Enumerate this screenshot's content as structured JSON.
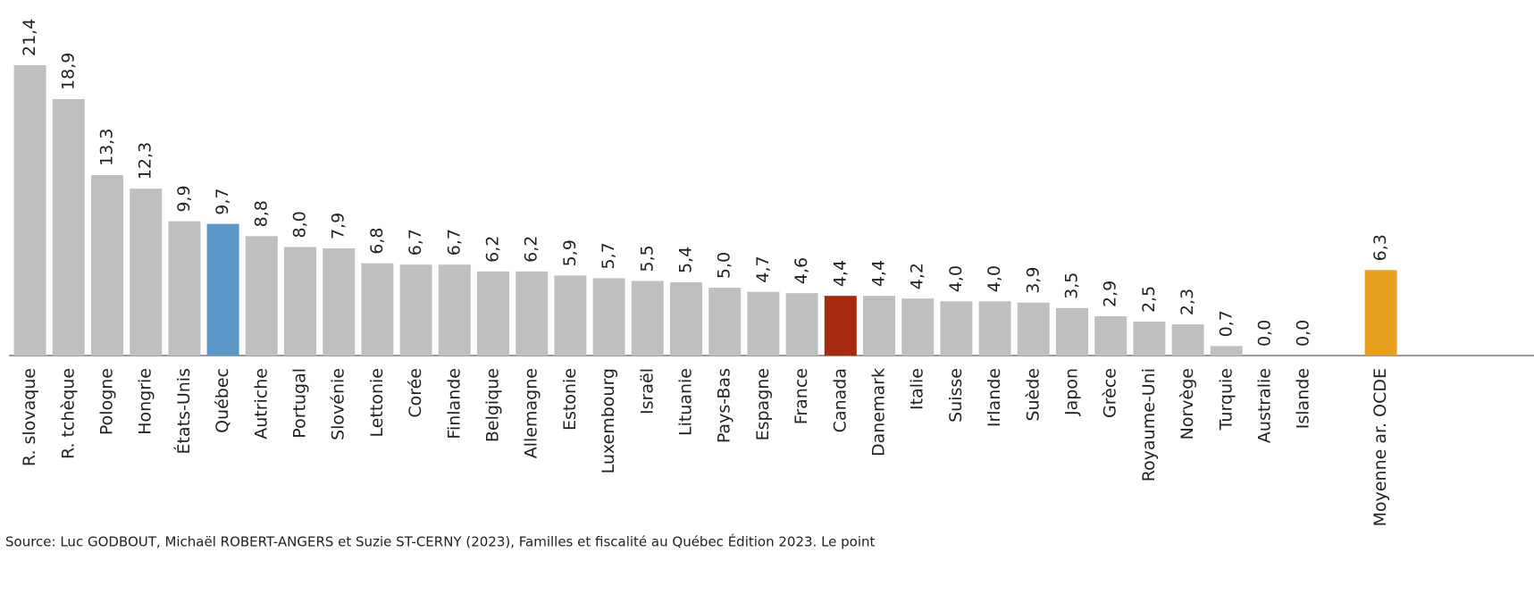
{
  "chart_data": {
    "type": "bar",
    "categories": [
      "R. slovaque",
      "R. tchèque",
      "Pologne",
      "Hongrie",
      "États-Unis",
      "Québec",
      "Autriche",
      "Portugal",
      "Slovénie",
      "Lettonie",
      "Corée",
      "Finlande",
      "Belgique",
      "Allemagne",
      "Estonie",
      "Luxembourg",
      "Israël",
      "Lituanie",
      "Pays-Bas",
      "Espagne",
      "France",
      "Canada",
      "Danemark",
      "Italie",
      "Suisse",
      "Irlande",
      "Suède",
      "Japon",
      "Grèce",
      "Royaume-Uni",
      "Norvège",
      "Turquie",
      "Australie",
      "Islande",
      null,
      "Moyenne ar. OCDE"
    ],
    "values": [
      21.4,
      18.9,
      13.3,
      12.3,
      9.9,
      9.7,
      8.8,
      8.0,
      7.9,
      6.8,
      6.7,
      6.7,
      6.2,
      6.2,
      5.9,
      5.7,
      5.5,
      5.4,
      5.0,
      4.7,
      4.6,
      4.4,
      4.4,
      4.2,
      4.0,
      4.0,
      3.9,
      3.5,
      2.9,
      2.5,
      2.3,
      0.7,
      0.0,
      0.0,
      null,
      6.3
    ],
    "value_labels": [
      "21,4",
      "18,9",
      "13,3",
      "12,3",
      "9,9",
      "9,7",
      "8,8",
      "8,0",
      "7,9",
      "6,8",
      "6,7",
      "6,7",
      "6,2",
      "6,2",
      "5,9",
      "5,7",
      "5,5",
      "5,4",
      "5,0",
      "4,7",
      "4,6",
      "4,4",
      "4,4",
      "4,2",
      "4,0",
      "4,0",
      "3,9",
      "3,5",
      "2,9",
      "2,5",
      "2,3",
      "0,7",
      "0,0",
      "0,0",
      null,
      "6,3"
    ],
    "colors": [
      "#bfbfbf",
      "#bfbfbf",
      "#bfbfbf",
      "#bfbfbf",
      "#bfbfbf",
      "#5b97c8",
      "#bfbfbf",
      "#bfbfbf",
      "#bfbfbf",
      "#bfbfbf",
      "#bfbfbf",
      "#bfbfbf",
      "#bfbfbf",
      "#bfbfbf",
      "#bfbfbf",
      "#bfbfbf",
      "#bfbfbf",
      "#bfbfbf",
      "#bfbfbf",
      "#bfbfbf",
      "#bfbfbf",
      "#a52a0f",
      "#bfbfbf",
      "#bfbfbf",
      "#bfbfbf",
      "#bfbfbf",
      "#bfbfbf",
      "#bfbfbf",
      "#bfbfbf",
      "#bfbfbf",
      "#bfbfbf",
      "#bfbfbf",
      "#bfbfbf",
      "#bfbfbf",
      null,
      "#e8a020"
    ],
    "source": "Source: Luc GODBOUT, Michaël ROBERT-ANGERS et Suzie ST-CERNY (2023), Familles et fiscalité au Québec Édition 2023. Le point"
  }
}
